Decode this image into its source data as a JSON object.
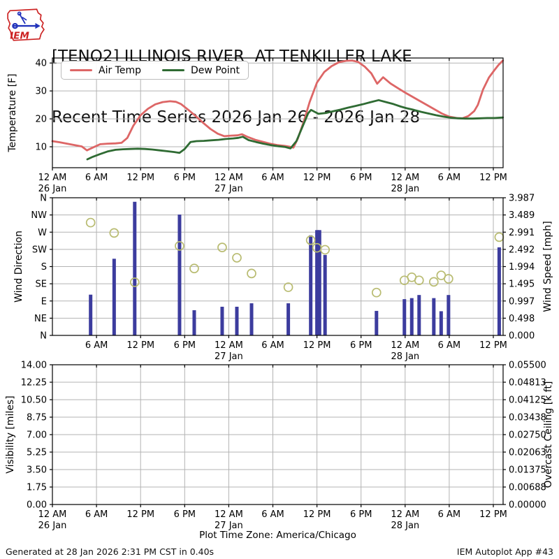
{
  "header": {
    "title_line1": "[TENO2] ILLINOIS RIVER  AT TENKILLER LAKE",
    "title_line2": "Recent Time Series 2026 Jan 26 - 2026 Jan 28",
    "logo_text": "IEM"
  },
  "footer": {
    "generated_text": "Generated at 28 Jan 2026 2:31 PM CST in 0.40s",
    "app_text": "IEM Autoplot App #43"
  },
  "plot_timezone_label": "Plot Time Zone: America/Chicago",
  "colors": {
    "air_temp": "#dd6666",
    "dew_point": "#2f6b33",
    "wind_bar": "#3c3c9e",
    "wind_marker": "#b9bc72",
    "grid": "#b3b3b3",
    "frame": "#000000",
    "overcast_label": "#2e9e2e",
    "logo_red": "#cc2222",
    "logo_blue": "#2233bb"
  },
  "time_axis": {
    "hours_span": [
      0,
      61.33
    ],
    "ticks": [
      {
        "hour": 0,
        "label": "12 AM",
        "day": "26 Jan"
      },
      {
        "hour": 6,
        "label": "6 AM"
      },
      {
        "hour": 12,
        "label": "12 PM"
      },
      {
        "hour": 18,
        "label": "6 PM"
      },
      {
        "hour": 24,
        "label": "12 AM",
        "day": "27 Jan"
      },
      {
        "hour": 30,
        "label": "6 AM"
      },
      {
        "hour": 36,
        "label": "12 PM"
      },
      {
        "hour": 42,
        "label": "6 PM"
      },
      {
        "hour": 48,
        "label": "12 AM",
        "day": "28 Jan"
      },
      {
        "hour": 54,
        "label": "6 AM"
      },
      {
        "hour": 60,
        "label": "12 PM"
      }
    ]
  },
  "chart_data": [
    {
      "id": "temperature",
      "type": "line",
      "ylabel": "Temperature [F]",
      "yticks": [
        10,
        20,
        30,
        40
      ],
      "ylim": [
        2.5,
        41.8
      ],
      "legend": [
        {
          "label": "Air Temp",
          "color_key": "air_temp"
        },
        {
          "label": "Dew Point",
          "color_key": "dew_point"
        }
      ],
      "series": [
        {
          "name": "Air Temp",
          "color_key": "air_temp",
          "points": [
            [
              0,
              12
            ],
            [
              1,
              11.6
            ],
            [
              2,
              11.1
            ],
            [
              3,
              10.6
            ],
            [
              4,
              10.1
            ],
            [
              4.7,
              8.7
            ],
            [
              5.5,
              9.7
            ],
            [
              6.5,
              10.9
            ],
            [
              7.5,
              11.1
            ],
            [
              8.6,
              11.2
            ],
            [
              9.4,
              11.4
            ],
            [
              10.2,
              13.2
            ],
            [
              11,
              17.5
            ],
            [
              12,
              21.3
            ],
            [
              13,
              23.6
            ],
            [
              14,
              25.2
            ],
            [
              15,
              26
            ],
            [
              16,
              26.3
            ],
            [
              16.8,
              26.1
            ],
            [
              17.5,
              25.3
            ],
            [
              18.5,
              23.2
            ],
            [
              19.5,
              21
            ],
            [
              20.5,
              18.6
            ],
            [
              21.5,
              16.4
            ],
            [
              22.5,
              14.7
            ],
            [
              23.4,
              13.8
            ],
            [
              24.3,
              14
            ],
            [
              25.2,
              14.1
            ],
            [
              25.8,
              14.5
            ],
            [
              26.6,
              13.5
            ],
            [
              27.6,
              12.5
            ],
            [
              28.6,
              11.8
            ],
            [
              29.6,
              11.1
            ],
            [
              30.6,
              10.6
            ],
            [
              31.6,
              10.3
            ],
            [
              32.3,
              10
            ],
            [
              32.8,
              9.7
            ],
            [
              33.4,
              13
            ],
            [
              34.2,
              19
            ],
            [
              35,
              26
            ],
            [
              36,
              33
            ],
            [
              37,
              36.8
            ],
            [
              38,
              38.9
            ],
            [
              39,
              40.3
            ],
            [
              40,
              40.8
            ],
            [
              40.8,
              40.9
            ],
            [
              41.6,
              40.4
            ],
            [
              42.5,
              38.7
            ],
            [
              43.4,
              36.3
            ],
            [
              44.2,
              32.6
            ],
            [
              45,
              34.9
            ],
            [
              46,
              32.7
            ],
            [
              47,
              31
            ],
            [
              48,
              29.4
            ],
            [
              49,
              27.9
            ],
            [
              50,
              26.4
            ],
            [
              51,
              24.9
            ],
            [
              52,
              23.4
            ],
            [
              53,
              21.9
            ],
            [
              54,
              20.8
            ],
            [
              55,
              20.3
            ],
            [
              55.8,
              20.2
            ],
            [
              56.6,
              21
            ],
            [
              57.4,
              22.8
            ],
            [
              57.9,
              25
            ],
            [
              58.6,
              30.5
            ],
            [
              59.4,
              34.8
            ],
            [
              60.1,
              37.3
            ],
            [
              60.7,
              39.3
            ],
            [
              61.3,
              40.9
            ]
          ]
        },
        {
          "name": "Dew Point",
          "color_key": "dew_point",
          "points": [
            [
              4.75,
              5.5
            ],
            [
              5.5,
              6.4
            ],
            [
              6.5,
              7.4
            ],
            [
              7.5,
              8.3
            ],
            [
              8.6,
              8.9
            ],
            [
              9.6,
              9.1
            ],
            [
              10.6,
              9.2
            ],
            [
              11.6,
              9.3
            ],
            [
              12.6,
              9.2
            ],
            [
              13.6,
              9
            ],
            [
              14.6,
              8.7
            ],
            [
              15.6,
              8.4
            ],
            [
              16.6,
              8.1
            ],
            [
              17.3,
              7.8
            ],
            [
              18,
              9.2
            ],
            [
              18.8,
              11.7
            ],
            [
              19.6,
              12
            ],
            [
              20.6,
              12.1
            ],
            [
              21.6,
              12.3
            ],
            [
              22.6,
              12.5
            ],
            [
              23.6,
              12.8
            ],
            [
              24.6,
              13
            ],
            [
              25.3,
              13.2
            ],
            [
              25.9,
              13.6
            ],
            [
              26.7,
              12.4
            ],
            [
              27.7,
              11.7
            ],
            [
              28.7,
              11.1
            ],
            [
              29.7,
              10.6
            ],
            [
              30.7,
              10.2
            ],
            [
              31.7,
              9.9
            ],
            [
              32.4,
              9.4
            ],
            [
              33.2,
              12
            ],
            [
              34,
              17
            ],
            [
              34.8,
              22
            ],
            [
              35.2,
              23.2
            ],
            [
              36.2,
              21.8
            ],
            [
              37.2,
              22.1
            ],
            [
              38.2,
              22.7
            ],
            [
              39.2,
              23.3
            ],
            [
              40.2,
              24
            ],
            [
              41.2,
              24.6
            ],
            [
              42.2,
              25.2
            ],
            [
              43.2,
              25.9
            ],
            [
              44.4,
              26.7
            ],
            [
              45.4,
              26
            ],
            [
              46.4,
              25.3
            ],
            [
              47.4,
              24.4
            ],
            [
              48.2,
              23.8
            ],
            [
              49.2,
              23.2
            ],
            [
              50.2,
              22.5
            ],
            [
              51.2,
              21.9
            ],
            [
              52.2,
              21.3
            ],
            [
              53.2,
              20.8
            ],
            [
              54.2,
              20.4
            ],
            [
              55.2,
              20.2
            ],
            [
              56.2,
              20.1
            ],
            [
              57.2,
              20.1
            ],
            [
              58.2,
              20.2
            ],
            [
              59.2,
              20.3
            ],
            [
              60.2,
              20.3
            ],
            [
              61.3,
              20.5
            ]
          ]
        }
      ]
    },
    {
      "id": "wind",
      "type": "bar+scatter",
      "ylabel_left": "Wind Direction",
      "ylabel_right": "Wind Speed [mph]",
      "yticks_left_bottom_to_top": [
        "N",
        "NE",
        "E",
        "SE",
        "S",
        "SW",
        "W",
        "NW",
        "N"
      ],
      "yticks_right_top_to_bottom": [
        "3.987",
        "3.489",
        "2.991",
        "2.492",
        "1.994",
        "1.495",
        "0.997",
        "0.498",
        "0.000"
      ],
      "speed_lim": [
        0,
        3.987
      ],
      "dir_lim_deg": [
        0,
        360
      ],
      "points": [
        {
          "hour": 5.2,
          "dir_deg": 295,
          "speed_mph": 1.18
        },
        {
          "hour": 8.4,
          "dir_deg": 268,
          "speed_mph": 2.22
        },
        {
          "hour": 11.2,
          "dir_deg": 139,
          "speed_mph": 3.87
        },
        {
          "hour": 17.3,
          "dir_deg": 234,
          "speed_mph": 3.5
        },
        {
          "hour": 19.3,
          "dir_deg": 175,
          "speed_mph": 0.73
        },
        {
          "hour": 23.1,
          "dir_deg": 230,
          "speed_mph": 0.83
        },
        {
          "hour": 25.1,
          "dir_deg": 203,
          "speed_mph": 0.83
        },
        {
          "hour": 27.1,
          "dir_deg": 162,
          "speed_mph": 0.93
        },
        {
          "hour": 32.1,
          "dir_deg": 126,
          "speed_mph": 0.93
        },
        {
          "hour": 35.15,
          "dir_deg": 249,
          "speed_mph": 2.9
        },
        {
          "hour": 36.0,
          "dir_deg": 229,
          "speed_mph": 3.05
        },
        {
          "hour": 36.35,
          "dir_deg": null,
          "speed_mph": 3.05
        },
        {
          "hour": 37.1,
          "dir_deg": 224,
          "speed_mph": 2.33
        },
        {
          "hour": 44.1,
          "dir_deg": 112,
          "speed_mph": 0.71
        },
        {
          "hour": 47.9,
          "dir_deg": 144,
          "speed_mph": 1.05
        },
        {
          "hour": 48.9,
          "dir_deg": 152,
          "speed_mph": 1.08
        },
        {
          "hour": 49.9,
          "dir_deg": 144,
          "speed_mph": 1.17
        },
        {
          "hour": 51.9,
          "dir_deg": 140,
          "speed_mph": 1.08
        },
        {
          "hour": 52.9,
          "dir_deg": 157,
          "speed_mph": 0.7
        },
        {
          "hour": 53.9,
          "dir_deg": 148,
          "speed_mph": 1.17
        },
        {
          "hour": 60.8,
          "dir_deg": 257,
          "speed_mph": 2.55
        }
      ]
    },
    {
      "id": "visibility",
      "type": "line",
      "ylabel_left": "Visibility [miles]",
      "ylabel_right": "Overcast Ceiling [k ft]",
      "yticks_left_top_to_bottom": [
        "14.00",
        "12.25",
        "10.50",
        "8.75",
        "7.00",
        "5.25",
        "3.50",
        "1.75",
        "0.00"
      ],
      "yticks_right_top_to_bottom": [
        "0.05500",
        "0.04813",
        "0.04125",
        "0.03438",
        "0.02750",
        "0.02063",
        "0.01375",
        "0.00688",
        "0.00000"
      ],
      "series": []
    }
  ]
}
